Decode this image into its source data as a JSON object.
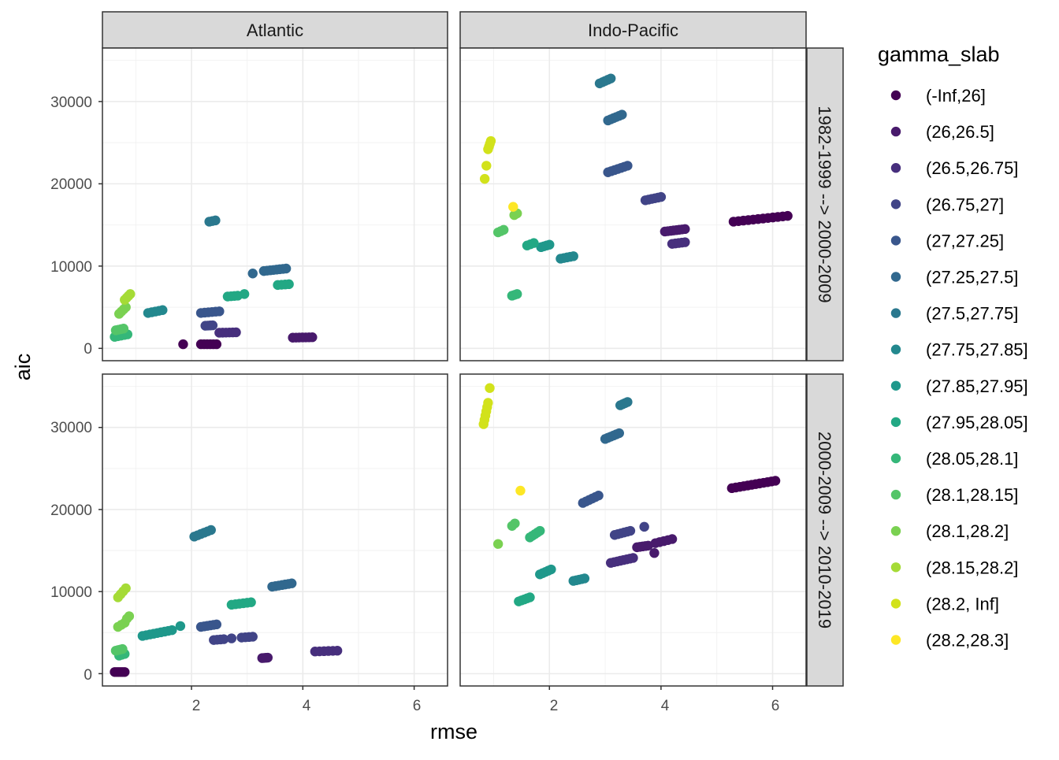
{
  "chart_data": {
    "type": "scatter",
    "xlabel": "rmse",
    "ylabel": "aic",
    "xlim": [
      0.4,
      6.6
    ],
    "ylim": [
      -1500,
      36500
    ],
    "xticks": [
      2,
      4,
      6
    ],
    "yticks": [
      0,
      10000,
      20000,
      30000
    ],
    "xtick_labels": [
      "2",
      "4",
      "6"
    ],
    "ytick_labels": [
      "0",
      "10000",
      "20000",
      "30000"
    ],
    "col_facets": [
      "Atlantic",
      "Indo-Pacific"
    ],
    "row_facets": [
      "1982-1999 --> 2000-2009",
      "2000-2009 --> 2010-2019"
    ],
    "legend": {
      "title": "gamma_slab",
      "position": "right",
      "entries": [
        {
          "label": "(-Inf,26]",
          "color": "#440154"
        },
        {
          "label": "(26,26.5]",
          "color": "#481A6C"
        },
        {
          "label": "(26.5,26.75]",
          "color": "#472F7D"
        },
        {
          "label": "(26.75,27]",
          "color": "#414487"
        },
        {
          "label": "(27,27.25]",
          "color": "#39568C"
        },
        {
          "label": "(27.25,27.5]",
          "color": "#31688E"
        },
        {
          "label": "(27.5,27.75]",
          "color": "#2A788E"
        },
        {
          "label": "(27.75,27.85]",
          "color": "#23888E"
        },
        {
          "label": "(27.85,27.95]",
          "color": "#1F988B"
        },
        {
          "label": "(27.95,28.05]",
          "color": "#22A884"
        },
        {
          "label": "(28.05,28.1]",
          "color": "#35B779"
        },
        {
          "label": "(28.1,28.15]",
          "color": "#54C568"
        },
        {
          "label": "(28.1,28.2]",
          "color": "#7AD151"
        },
        {
          "label": "(28.15,28.2]",
          "color": "#A5DB36"
        },
        {
          "label": "(28.2, Inf]",
          "color": "#D2E21B"
        },
        {
          "label": "(28.2,28.3]",
          "color": "#FDE725"
        }
      ]
    },
    "panels": [
      {
        "col": "Atlantic",
        "row": "1982-1999 --> 2000-2009",
        "clusters": [
          {
            "series": 0,
            "x": [
              1.85,
              1.85
            ],
            "y": [
              500,
              500
            ],
            "n": 1
          },
          {
            "series": 0,
            "x": [
              2.17,
              2.45
            ],
            "y": [
              500,
              500
            ],
            "n": 6
          },
          {
            "series": 1,
            "x": [
              3.82,
              4.17
            ],
            "y": [
              1300,
              1350
            ],
            "n": 7
          },
          {
            "series": 2,
            "x": [
              2.5,
              2.8
            ],
            "y": [
              1900,
              1950
            ],
            "n": 6
          },
          {
            "series": 3,
            "x": [
              2.25,
              2.38
            ],
            "y": [
              2750,
              2800
            ],
            "n": 4
          },
          {
            "series": 4,
            "x": [
              2.17,
              2.5
            ],
            "y": [
              4300,
              4500
            ],
            "n": 6
          },
          {
            "series": 5,
            "x": [
              3.1,
              3.1
            ],
            "y": [
              9100,
              9100
            ],
            "n": 1
          },
          {
            "series": 5,
            "x": [
              3.3,
              3.7
            ],
            "y": [
              9400,
              9700
            ],
            "n": 8
          },
          {
            "series": 6,
            "x": [
              2.32,
              2.43
            ],
            "y": [
              15400,
              15550
            ],
            "n": 3
          },
          {
            "series": 7,
            "x": [
              1.22,
              1.48
            ],
            "y": [
              4300,
              4650
            ],
            "n": 5
          },
          {
            "series": 9,
            "x": [
              2.65,
              2.83
            ],
            "y": [
              6300,
              6400
            ],
            "n": 4
          },
          {
            "series": 9,
            "x": [
              2.95,
              2.95
            ],
            "y": [
              6600,
              6600
            ],
            "n": 1
          },
          {
            "series": 9,
            "x": [
              3.55,
              3.75
            ],
            "y": [
              7700,
              7800
            ],
            "n": 4
          },
          {
            "series": 10,
            "x": [
              0.62,
              0.85
            ],
            "y": [
              1400,
              1700
            ],
            "n": 5
          },
          {
            "series": 11,
            "x": [
              0.64,
              0.78
            ],
            "y": [
              2200,
              2400
            ],
            "n": 4
          },
          {
            "series": 12,
            "x": [
              0.7,
              0.82
            ],
            "y": [
              4200,
              5000
            ],
            "n": 4
          },
          {
            "series": 13,
            "x": [
              0.8,
              0.9
            ],
            "y": [
              5900,
              6600
            ],
            "n": 4
          }
        ]
      },
      {
        "col": "Indo-Pacific",
        "row": "1982-1999 --> 2000-2009",
        "clusters": [
          {
            "series": 0,
            "x": [
              5.3,
              6.27
            ],
            "y": [
              15400,
              16100
            ],
            "n": 12
          },
          {
            "series": 1,
            "x": [
              4.07,
              4.43
            ],
            "y": [
              14200,
              14500
            ],
            "n": 8
          },
          {
            "series": 2,
            "x": [
              4.2,
              4.43
            ],
            "y": [
              12700,
              12900
            ],
            "n": 5
          },
          {
            "series": 3,
            "x": [
              3.72,
              4.0
            ],
            "y": [
              18000,
              18400
            ],
            "n": 6
          },
          {
            "series": 4,
            "x": [
              3.05,
              3.4
            ],
            "y": [
              21400,
              22200
            ],
            "n": 7
          },
          {
            "series": 5,
            "x": [
              3.05,
              3.3
            ],
            "y": [
              27700,
              28400
            ],
            "n": 6
          },
          {
            "series": 6,
            "x": [
              2.9,
              3.1
            ],
            "y": [
              32200,
              32800
            ],
            "n": 5
          },
          {
            "series": 7,
            "x": [
              2.2,
              2.43
            ],
            "y": [
              10900,
              11200
            ],
            "n": 5
          },
          {
            "series": 8,
            "x": [
              1.85,
              2.0
            ],
            "y": [
              12300,
              12600
            ],
            "n": 4
          },
          {
            "series": 9,
            "x": [
              1.6,
              1.72
            ],
            "y": [
              12500,
              12800
            ],
            "n": 3
          },
          {
            "series": 10,
            "x": [
              1.33,
              1.42
            ],
            "y": [
              6400,
              6600
            ],
            "n": 3
          },
          {
            "series": 11,
            "x": [
              1.08,
              1.18
            ],
            "y": [
              14100,
              14400
            ],
            "n": 3
          },
          {
            "series": 12,
            "x": [
              1.37,
              1.42
            ],
            "y": [
              16200,
              16400
            ],
            "n": 2
          },
          {
            "series": 14,
            "x": [
              0.87,
              0.87
            ],
            "y": [
              22200,
              22200
            ],
            "n": 1
          },
          {
            "series": 14,
            "x": [
              0.84,
              0.84
            ],
            "y": [
              20600,
              20600
            ],
            "n": 1
          },
          {
            "series": 14,
            "x": [
              0.9,
              0.95
            ],
            "y": [
              24200,
              25200
            ],
            "n": 4
          },
          {
            "series": 15,
            "x": [
              1.35,
              1.35
            ],
            "y": [
              17200,
              17200
            ],
            "n": 1
          }
        ]
      },
      {
        "col": "Atlantic",
        "row": "2000-2009 --> 2010-2019",
        "clusters": [
          {
            "series": 0,
            "x": [
              0.62,
              0.8
            ],
            "y": [
              200,
              200
            ],
            "n": 6
          },
          {
            "series": 1,
            "x": [
              3.27,
              3.37
            ],
            "y": [
              1900,
              1950
            ],
            "n": 4
          },
          {
            "series": 2,
            "x": [
              4.22,
              4.62
            ],
            "y": [
              2700,
              2800
            ],
            "n": 6
          },
          {
            "series": 3,
            "x": [
              2.4,
              2.58
            ],
            "y": [
              4100,
              4200
            ],
            "n": 4
          },
          {
            "series": 3,
            "x": [
              2.72,
              2.72
            ],
            "y": [
              4300,
              4300
            ],
            "n": 1
          },
          {
            "series": 3,
            "x": [
              2.9,
              3.1
            ],
            "y": [
              4400,
              4500
            ],
            "n": 4
          },
          {
            "series": 4,
            "x": [
              2.17,
              2.45
            ],
            "y": [
              5700,
              6000
            ],
            "n": 6
          },
          {
            "series": 5,
            "x": [
              3.45,
              3.8
            ],
            "y": [
              10600,
              11000
            ],
            "n": 7
          },
          {
            "series": 6,
            "x": [
              2.05,
              2.35
            ],
            "y": [
              16700,
              17500
            ],
            "n": 6
          },
          {
            "series": 8,
            "x": [
              1.12,
              1.65
            ],
            "y": [
              4600,
              5300
            ],
            "n": 9
          },
          {
            "series": 8,
            "x": [
              1.8,
              1.8
            ],
            "y": [
              5800,
              5800
            ],
            "n": 1
          },
          {
            "series": 9,
            "x": [
              2.72,
              3.07
            ],
            "y": [
              8400,
              8700
            ],
            "n": 6
          },
          {
            "series": 10,
            "x": [
              0.7,
              0.8
            ],
            "y": [
              2200,
              2400
            ],
            "n": 3
          },
          {
            "series": 11,
            "x": [
              0.64,
              0.76
            ],
            "y": [
              2800,
              3000
            ],
            "n": 4
          },
          {
            "series": 12,
            "x": [
              0.68,
              0.8
            ],
            "y": [
              5700,
              6200
            ],
            "n": 3
          },
          {
            "series": 12,
            "x": [
              0.84,
              0.88
            ],
            "y": [
              6700,
              7000
            ],
            "n": 2
          },
          {
            "series": 13,
            "x": [
              0.68,
              0.82
            ],
            "y": [
              9300,
              10400
            ],
            "n": 4
          }
        ]
      },
      {
        "col": "Indo-Pacific",
        "row": "2000-2009 --> 2010-2019",
        "clusters": [
          {
            "series": 0,
            "x": [
              5.27,
              6.05
            ],
            "y": [
              22600,
              23500
            ],
            "n": 12
          },
          {
            "series": 1,
            "x": [
              3.57,
              3.77
            ],
            "y": [
              15400,
              15600
            ],
            "n": 5
          },
          {
            "series": 1,
            "x": [
              3.9,
              4.2
            ],
            "y": [
              15900,
              16400
            ],
            "n": 5
          },
          {
            "series": 1,
            "x": [
              3.88,
              3.88
            ],
            "y": [
              14700,
              14700
            ],
            "n": 1
          },
          {
            "series": 2,
            "x": [
              3.1,
              3.5
            ],
            "y": [
              13500,
              14100
            ],
            "n": 8
          },
          {
            "series": 3,
            "x": [
              3.17,
              3.45
            ],
            "y": [
              16900,
              17400
            ],
            "n": 6
          },
          {
            "series": 3,
            "x": [
              3.7,
              3.7
            ],
            "y": [
              17900,
              17900
            ],
            "n": 1
          },
          {
            "series": 4,
            "x": [
              2.6,
              2.88
            ],
            "y": [
              20800,
              21700
            ],
            "n": 6
          },
          {
            "series": 5,
            "x": [
              3.0,
              3.25
            ],
            "y": [
              28600,
              29300
            ],
            "n": 6
          },
          {
            "series": 6,
            "x": [
              3.27,
              3.4
            ],
            "y": [
              32700,
              33100
            ],
            "n": 4
          },
          {
            "series": 7,
            "x": [
              2.43,
              2.63
            ],
            "y": [
              11300,
              11600
            ],
            "n": 5
          },
          {
            "series": 8,
            "x": [
              1.83,
              2.03
            ],
            "y": [
              12100,
              12700
            ],
            "n": 5
          },
          {
            "series": 9,
            "x": [
              1.45,
              1.65
            ],
            "y": [
              8800,
              9300
            ],
            "n": 5
          },
          {
            "series": 10,
            "x": [
              1.65,
              1.83
            ],
            "y": [
              16600,
              17400
            ],
            "n": 5
          },
          {
            "series": 11,
            "x": [
              1.33,
              1.38
            ],
            "y": [
              18000,
              18300
            ],
            "n": 2
          },
          {
            "series": 12,
            "x": [
              1.08,
              1.08
            ],
            "y": [
              15800,
              15800
            ],
            "n": 1
          },
          {
            "series": 14,
            "x": [
              0.82,
              0.9
            ],
            "y": [
              30400,
              33000
            ],
            "n": 6
          },
          {
            "series": 14,
            "x": [
              0.93,
              0.93
            ],
            "y": [
              34800,
              34800
            ],
            "n": 1
          },
          {
            "series": 15,
            "x": [
              1.48,
              1.48
            ],
            "y": [
              22300,
              22300
            ],
            "n": 1
          }
        ]
      }
    ]
  }
}
